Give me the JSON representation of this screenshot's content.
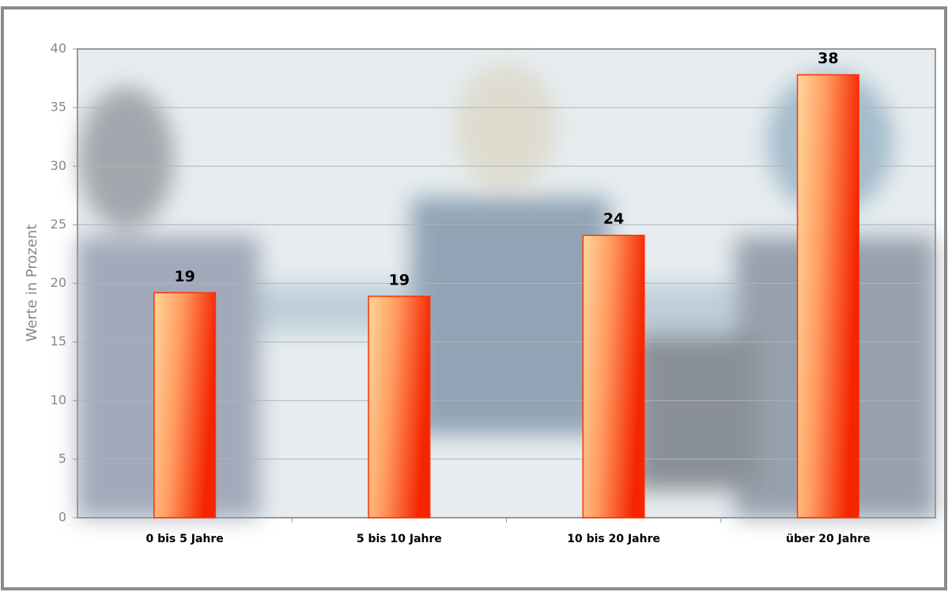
{
  "chart_data": {
    "type": "bar",
    "y_label": "Werte in Prozent",
    "categories": [
      "0 bis 5 Jahre",
      "5 bis 10 Jahre",
      "10 bis 20 Jahre",
      "über 20 Jahre"
    ],
    "values": [
      19.2,
      18.9,
      24.1,
      37.8
    ],
    "value_labels": [
      "19",
      "19",
      "24",
      "38"
    ],
    "color": "#ff3300",
    "ylim": [
      0,
      40
    ],
    "yticks": [
      0,
      5,
      10,
      15,
      20,
      25,
      30,
      35,
      40
    ],
    "grid": true
  }
}
